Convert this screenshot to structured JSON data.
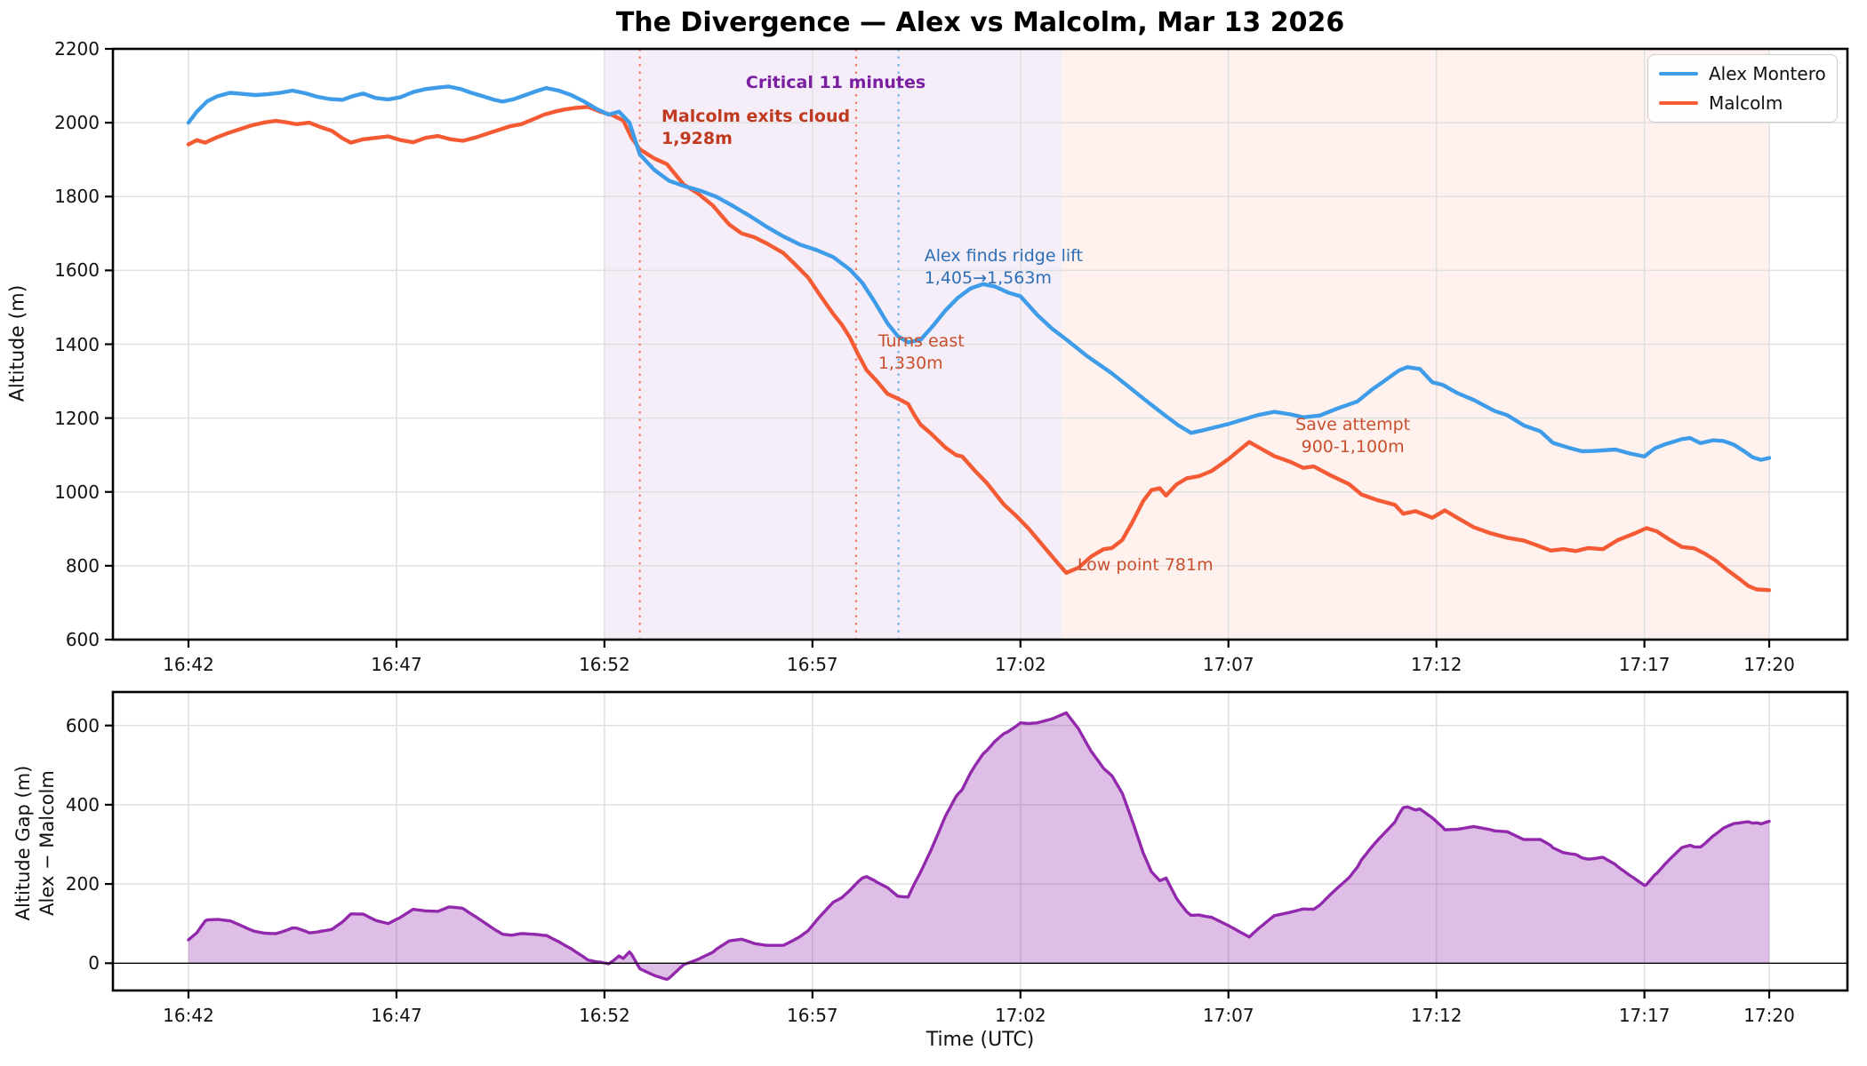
{
  "title": "The Divergence — Alex vs Malcolm, Mar 13 2026",
  "legend": {
    "items": [
      {
        "label": "Alex Montero",
        "color": "#3e9ce8"
      },
      {
        "label": "Malcolm",
        "color": "#f45b35"
      }
    ]
  },
  "axes": {
    "top": {
      "ylabel": "Altitude (m)",
      "ylim": [
        600,
        2200
      ],
      "yticks": [
        600,
        800,
        1000,
        1200,
        1400,
        1600,
        1800,
        2000,
        2200
      ],
      "grid": true
    },
    "bottom": {
      "ylabel_line1": "Altitude Gap (m)",
      "ylabel_line2": "Alex − Malcolm",
      "xlabel": "Time (UTC)",
      "ylim": [
        -70,
        685
      ],
      "yticks": [
        0,
        200,
        400,
        600
      ],
      "grid": true
    }
  },
  "x_axis": {
    "base_time": "16:42",
    "unit": "minutes since 16:42",
    "ticks": [
      {
        "t": 0,
        "label": "16:42"
      },
      {
        "t": 5,
        "label": "16:47"
      },
      {
        "t": 10,
        "label": "16:52"
      },
      {
        "t": 15,
        "label": "16:57"
      },
      {
        "t": 20,
        "label": "17:02"
      },
      {
        "t": 25,
        "label": "17:07"
      },
      {
        "t": 30,
        "label": "17:12"
      },
      {
        "t": 35,
        "label": "17:17"
      },
      {
        "t": 38,
        "label": "17:20"
      }
    ]
  },
  "spans": [
    {
      "id": "critical-window",
      "t0": 10,
      "t1": 21,
      "color": "#9b59b6",
      "opacity": 0.1
    },
    {
      "id": "aftermath-window",
      "t0": 21,
      "t1": 38,
      "color": "#ff7043",
      "opacity": 0.09
    }
  ],
  "vlines": [
    {
      "id": "line-malcolm-exits-cloud",
      "t": 10.85,
      "color": "#f4694f"
    },
    {
      "id": "line-turns-east",
      "t": 16.05,
      "color": "#f4694f"
    },
    {
      "id": "line-alex-ridge-lift",
      "t": 17.07,
      "color": "#58a5e6"
    }
  ],
  "annotations": [
    {
      "id": "critical-11-minutes",
      "text_lines": [
        "Critical 11 minutes"
      ],
      "color": "#7b1fa2",
      "bold": true,
      "align": "center",
      "t": 15.56,
      "alt": 2138
    },
    {
      "id": "malcolm-exits-cloud",
      "text_lines": [
        "Malcolm exits cloud",
        "1,928m"
      ],
      "color": "#bf3a1f",
      "bold": true,
      "align": "left",
      "t": 11.37,
      "alt": 2046
    },
    {
      "id": "alex-finds-ridge-lift",
      "text_lines": [
        "Alex finds ridge lift",
        "1,405→1,563m"
      ],
      "color": "#2d6fb6",
      "bold": false,
      "align": "left",
      "t": 17.69,
      "alt": 1668
    },
    {
      "id": "turns-east",
      "text_lines": [
        "Turns east",
        "1,330m"
      ],
      "color": "#c9502e",
      "bold": false,
      "align": "left",
      "t": 16.58,
      "alt": 1437
    },
    {
      "id": "low-point",
      "text_lines": [
        "Low point 781m"
      ],
      "color": "#c9502e",
      "bold": false,
      "align": "left",
      "t": 21.37,
      "alt": 831
    },
    {
      "id": "save-attempt",
      "text_lines": [
        "Save attempt",
        "900-1,100m"
      ],
      "color": "#c9502e",
      "bold": false,
      "align": "center",
      "t": 27.99,
      "alt": 1211
    }
  ],
  "chart_data": [
    {
      "type": "line",
      "name": "Alex Montero",
      "panel": "top",
      "color": "#3e9ce8",
      "x_minutes": [
        0,
        0.2,
        0.45,
        0.7,
        1.0,
        1.3,
        1.6,
        1.9,
        2.2,
        2.5,
        2.8,
        3.1,
        3.4,
        3.7,
        3.95,
        4.2,
        4.5,
        4.8,
        5.1,
        5.4,
        5.7,
        6.0,
        6.25,
        6.55,
        6.8,
        7.1,
        7.35,
        7.55,
        7.8,
        8.1,
        8.4,
        8.6,
        8.9,
        9.2,
        9.5,
        9.8,
        10.1,
        10.35,
        10.6,
        10.85,
        11.2,
        11.55,
        11.9,
        12.3,
        12.7,
        13.1,
        13.5,
        13.9,
        14.3,
        14.7,
        15.1,
        15.5,
        15.9,
        16.2,
        16.5,
        16.8,
        17.05,
        17.3,
        17.6,
        17.9,
        18.2,
        18.5,
        18.8,
        19.1,
        19.4,
        19.7,
        20.0,
        20.4,
        20.75,
        21.1,
        21.6,
        22.2,
        22.6,
        23.0,
        23.5,
        23.8,
        24.1,
        24.4,
        25.0,
        25.7,
        26.1,
        26.5,
        26.8,
        27.2,
        27.6,
        28.1,
        28.45,
        28.8,
        29.1,
        29.3,
        29.6,
        29.9,
        30.15,
        30.5,
        30.9,
        31.4,
        31.7,
        32.1,
        32.5,
        32.8,
        33.2,
        33.5,
        33.8,
        34.3,
        34.65,
        35.0,
        35.25,
        35.5,
        35.9,
        36.1,
        36.35,
        36.65,
        36.9,
        37.15,
        37.4,
        37.6,
        37.8,
        38.0
      ],
      "y_altitude_m": [
        2000,
        2030,
        2058,
        2072,
        2081,
        2078,
        2075,
        2077,
        2081,
        2087,
        2080,
        2070,
        2064,
        2062,
        2072,
        2079,
        2067,
        2063,
        2069,
        2083,
        2091,
        2095,
        2098,
        2091,
        2081,
        2071,
        2062,
        2057,
        2063,
        2075,
        2087,
        2094,
        2087,
        2075,
        2058,
        2038,
        2022,
        2030,
        2000,
        1914,
        1872,
        1843,
        1829,
        1816,
        1799,
        1774,
        1747,
        1718,
        1692,
        1670,
        1655,
        1636,
        1602,
        1566,
        1514,
        1457,
        1422,
        1405,
        1412,
        1450,
        1492,
        1526,
        1551,
        1563,
        1556,
        1540,
        1530,
        1480,
        1443,
        1413,
        1368,
        1321,
        1285,
        1249,
        1205,
        1180,
        1160,
        1167,
        1184,
        1208,
        1217,
        1210,
        1202,
        1207,
        1225,
        1245,
        1277,
        1305,
        1329,
        1338,
        1333,
        1297,
        1290,
        1268,
        1249,
        1219,
        1208,
        1180,
        1164,
        1133,
        1119,
        1110,
        1111,
        1115,
        1104,
        1096,
        1118,
        1129,
        1143,
        1146,
        1132,
        1140,
        1138,
        1128,
        1110,
        1094,
        1087,
        1092
      ]
    },
    {
      "type": "line",
      "name": "Malcolm",
      "panel": "top",
      "color": "#f45b35",
      "x_minutes": [
        0,
        0.2,
        0.4,
        0.65,
        0.95,
        1.2,
        1.5,
        1.8,
        2.1,
        2.35,
        2.6,
        2.9,
        3.2,
        3.45,
        3.7,
        3.9,
        4.2,
        4.5,
        4.8,
        5.1,
        5.4,
        5.7,
        6.0,
        6.3,
        6.6,
        6.9,
        7.2,
        7.45,
        7.75,
        8.0,
        8.3,
        8.55,
        8.8,
        9.05,
        9.3,
        9.6,
        9.9,
        10.2,
        10.45,
        10.65,
        10.85,
        11.2,
        11.5,
        11.9,
        12.25,
        12.6,
        13.0,
        13.3,
        13.6,
        13.9,
        14.3,
        14.55,
        14.9,
        15.2,
        15.5,
        15.7,
        15.9,
        16.1,
        16.3,
        16.55,
        16.8,
        17.1,
        17.3,
        17.45,
        17.6,
        17.85,
        18.2,
        18.45,
        18.6,
        18.9,
        19.2,
        19.6,
        19.9,
        20.2,
        20.5,
        20.8,
        21.1,
        21.4,
        21.7,
        22.0,
        22.2,
        22.45,
        22.7,
        22.95,
        23.15,
        23.35,
        23.5,
        23.75,
        24.0,
        24.3,
        24.6,
        25.0,
        25.25,
        25.5,
        25.8,
        26.1,
        26.5,
        26.8,
        27.05,
        27.45,
        27.9,
        28.2,
        28.6,
        29.0,
        29.2,
        29.5,
        29.9,
        30.2,
        30.5,
        30.9,
        31.3,
        31.7,
        32.1,
        32.4,
        32.75,
        33.05,
        33.35,
        33.65,
        34.0,
        34.35,
        34.75,
        35.05,
        35.3,
        35.6,
        35.9,
        36.2,
        36.45,
        36.7,
        37.0,
        37.3,
        37.5,
        37.7,
        38.0
      ],
      "y_altitude_m": [
        1941,
        1953,
        1946,
        1959,
        1972,
        1981,
        1992,
        2000,
        2005,
        2001,
        1996,
        2000,
        1987,
        1978,
        1958,
        1946,
        1955,
        1959,
        1963,
        1953,
        1947,
        1959,
        1964,
        1955,
        1951,
        1960,
        1971,
        1980,
        1991,
        1996,
        2010,
        2022,
        2030,
        2036,
        2040,
        2043,
        2030,
        2020,
        2006,
        1960,
        1928,
        1903,
        1888,
        1833,
        1808,
        1776,
        1724,
        1700,
        1690,
        1673,
        1647,
        1620,
        1580,
        1530,
        1482,
        1454,
        1418,
        1372,
        1330,
        1300,
        1266,
        1250,
        1238,
        1208,
        1182,
        1158,
        1120,
        1100,
        1096,
        1058,
        1023,
        966,
        935,
        900,
        860,
        820,
        781,
        795,
        825,
        845,
        848,
        870,
        920,
        975,
        1005,
        1010,
        990,
        1020,
        1037,
        1043,
        1057,
        1089,
        1112,
        1135,
        1116,
        1097,
        1081,
        1065,
        1069,
        1045,
        1021,
        993,
        977,
        965,
        941,
        948,
        930,
        950,
        930,
        904,
        888,
        876,
        868,
        856,
        841,
        845,
        840,
        848,
        845,
        869,
        887,
        902,
        893,
        871,
        851,
        847,
        833,
        815,
        788,
        763,
        745,
        736,
        734
      ]
    },
    {
      "type": "area",
      "name": "Altitude Gap (Alex − Malcolm)",
      "panel": "bottom",
      "color": "#9229ac",
      "fill_opacity": 0.3,
      "derived": "Alex Montero altitude minus Malcolm altitude, linearly interpolated over shared time grid"
    }
  ]
}
